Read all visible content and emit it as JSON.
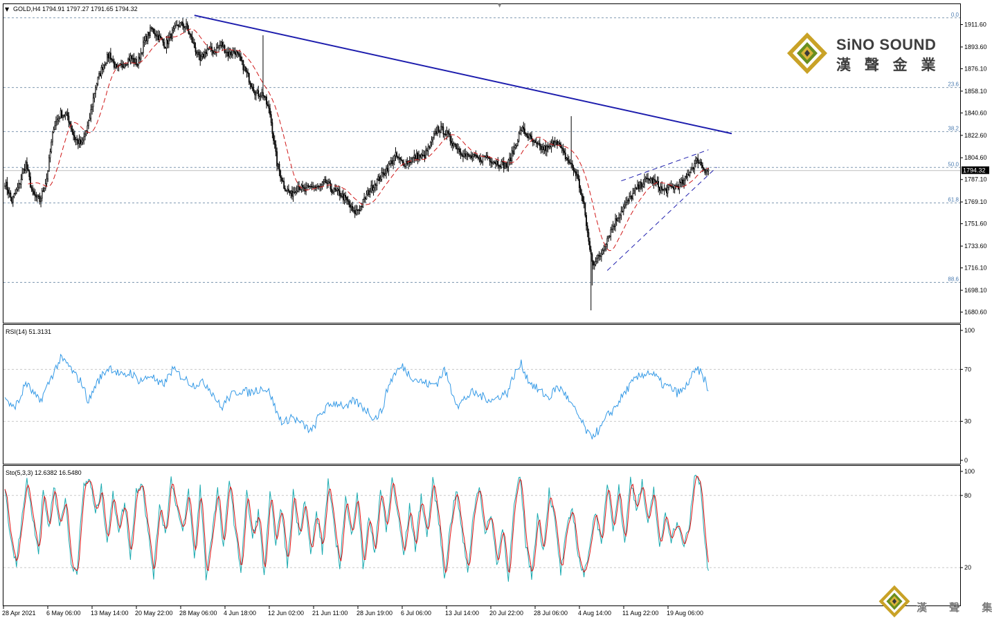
{
  "colors": {
    "background": "#ffffff",
    "candles": "#000000",
    "ma": "#d01818",
    "trendline": "#1c1cad",
    "channel": "#1c1cad",
    "fib_line": "#7e98b0",
    "fib_label": "#4a7bb0",
    "grid_dash": "#c8c8c8",
    "rsi_line": "#3399e6",
    "sto_main": "#1aaab0",
    "sto_signal": "#e01010",
    "current_price_bg": "#000000",
    "current_price_fg": "#ffffff",
    "logo_gold": "#c9a227",
    "logo_green": "#6a8f1e",
    "logo_text": "#3e3e3e"
  },
  "brand": {
    "name": "SiNO SOUND",
    "name_cn": "漢 聲 金 業",
    "watermark_cn": "漢 聲 集 團"
  },
  "chart_data": [
    {
      "type": "candlestick",
      "title": "GOLD,H4  1794.91 1797.27 1791.65 1794.32",
      "ylim": [
        1672,
        1928
      ],
      "y_ticks": [
        "1911.60",
        "1893.60",
        "1876.10",
        "1858.10",
        "1840.60",
        "1822.60",
        "1804.60",
        "1787.10",
        "1769.10",
        "1751.60",
        "1733.60",
        "1716.10",
        "1698.10",
        "1680.60"
      ],
      "current_price": "1794.32",
      "x_labels": [
        "28 Apr 2021",
        "6 May 06:00",
        "13 May 14:00",
        "20 May 22:00",
        "28 May 06:00",
        "4 Jun 18:00",
        "12 Jun 02:00",
        "21 Jun 11:00",
        "28 Jun 19:00",
        "6 Jul 06:00",
        "13 Jul 14:00",
        "20 Jul 22:00",
        "28 Jul 06:00",
        "4 Aug 14:00",
        "11 Aug 22:00",
        "19 Aug 06:00"
      ],
      "fib_levels": [
        {
          "label": "0.0",
          "price": 1917.0
        },
        {
          "label": "23.6",
          "price": 1861.0
        },
        {
          "label": "38.2",
          "price": 1825.6
        },
        {
          "label": "50.0",
          "price": 1796.8
        },
        {
          "label": "61.8",
          "price": 1768.3
        },
        {
          "label": "88.6",
          "price": 1704.5
        }
      ],
      "close_anchors": [
        [
          0,
          1785
        ],
        [
          6,
          1770
        ],
        [
          12,
          1782
        ],
        [
          18,
          1800
        ],
        [
          24,
          1775
        ],
        [
          30,
          1770
        ],
        [
          36,
          1788
        ],
        [
          42,
          1830
        ],
        [
          48,
          1840
        ],
        [
          54,
          1838
        ],
        [
          60,
          1820
        ],
        [
          66,
          1815
        ],
        [
          72,
          1832
        ],
        [
          78,
          1862
        ],
        [
          84,
          1878
        ],
        [
          90,
          1888
        ],
        [
          96,
          1875
        ],
        [
          102,
          1880
        ],
        [
          108,
          1885
        ],
        [
          114,
          1880
        ],
        [
          120,
          1898
        ],
        [
          126,
          1908
        ],
        [
          132,
          1902
        ],
        [
          138,
          1895
        ],
        [
          144,
          1905
        ],
        [
          150,
          1912
        ],
        [
          156,
          1910
        ],
        [
          162,
          1896
        ],
        [
          168,
          1882
        ],
        [
          174,
          1892
        ],
        [
          180,
          1890
        ],
        [
          186,
          1896
        ],
        [
          192,
          1888
        ],
        [
          198,
          1890
        ],
        [
          204,
          1880
        ],
        [
          210,
          1868
        ],
        [
          216,
          1856
        ],
        [
          222,
          1856
        ],
        [
          228,
          1840
        ],
        [
          234,
          1800
        ],
        [
          240,
          1782
        ],
        [
          246,
          1775
        ],
        [
          252,
          1782
        ],
        [
          258,
          1778
        ],
        [
          264,
          1782
        ],
        [
          270,
          1780
        ],
        [
          276,
          1785
        ],
        [
          282,
          1778
        ],
        [
          288,
          1776
        ],
        [
          294,
          1770
        ],
        [
          300,
          1760
        ],
        [
          306,
          1765
        ],
        [
          312,
          1776
        ],
        [
          318,
          1784
        ],
        [
          324,
          1790
        ],
        [
          330,
          1798
        ],
        [
          336,
          1806
        ],
        [
          342,
          1800
        ],
        [
          348,
          1802
        ],
        [
          354,
          1806
        ],
        [
          360,
          1805
        ],
        [
          366,
          1815
        ],
        [
          372,
          1828
        ],
        [
          378,
          1826
        ],
        [
          384,
          1818
        ],
        [
          390,
          1812
        ],
        [
          396,
          1806
        ],
        [
          402,
          1805
        ],
        [
          408,
          1803
        ],
        [
          414,
          1806
        ],
        [
          420,
          1802
        ],
        [
          426,
          1800
        ],
        [
          432,
          1798
        ],
        [
          438,
          1812
        ],
        [
          444,
          1828
        ],
        [
          450,
          1822
        ],
        [
          456,
          1815
        ],
        [
          462,
          1812
        ],
        [
          468,
          1812
        ],
        [
          474,
          1820
        ],
        [
          480,
          1808
        ],
        [
          486,
          1800
        ],
        [
          492,
          1790
        ],
        [
          498,
          1765
        ],
        [
          503,
          1730
        ],
        [
          506,
          1720
        ],
        [
          512,
          1726
        ],
        [
          518,
          1740
        ],
        [
          524,
          1752
        ],
        [
          530,
          1762
        ],
        [
          536,
          1770
        ],
        [
          542,
          1778
        ],
        [
          548,
          1784
        ],
        [
          554,
          1788
        ],
        [
          560,
          1784
        ],
        [
          566,
          1778
        ],
        [
          572,
          1780
        ],
        [
          578,
          1782
        ],
        [
          584,
          1785
        ],
        [
          590,
          1796
        ],
        [
          596,
          1803
        ],
        [
          602,
          1795
        ],
        [
          605,
          1794.32
        ]
      ],
      "special_lows": [
        [
          504,
          1682
        ],
        [
          505,
          1702
        ]
      ],
      "special_highs": [
        [
          487,
          1838
        ],
        [
          222,
          1903
        ]
      ],
      "ma_period": 20,
      "trendline": [
        [
          163,
          1919
        ],
        [
          625,
          1824
        ]
      ],
      "channel": [
        [
          [
            518,
            1714
          ],
          [
            612,
            1797
          ]
        ],
        [
          [
            530,
            1786
          ],
          [
            605,
            1811
          ]
        ]
      ]
    },
    {
      "type": "line",
      "title": "RSI(14) 51.3131",
      "ylim": [
        0,
        100
      ],
      "y_ticks": [
        "100",
        "70",
        "30",
        "0"
      ],
      "levels": [
        70,
        30
      ],
      "anchors": [
        [
          0,
          50
        ],
        [
          6,
          40
        ],
        [
          12,
          45
        ],
        [
          18,
          60
        ],
        [
          24,
          52
        ],
        [
          30,
          45
        ],
        [
          36,
          56
        ],
        [
          42,
          68
        ],
        [
          48,
          78
        ],
        [
          54,
          74
        ],
        [
          60,
          66
        ],
        [
          66,
          60
        ],
        [
          72,
          45
        ],
        [
          78,
          58
        ],
        [
          84,
          66
        ],
        [
          90,
          72
        ],
        [
          96,
          68
        ],
        [
          102,
          64
        ],
        [
          108,
          68
        ],
        [
          114,
          62
        ],
        [
          120,
          62
        ],
        [
          126,
          66
        ],
        [
          132,
          58
        ],
        [
          138,
          60
        ],
        [
          144,
          70
        ],
        [
          150,
          66
        ],
        [
          156,
          62
        ],
        [
          162,
          58
        ],
        [
          168,
          60
        ],
        [
          174,
          58
        ],
        [
          180,
          50
        ],
        [
          186,
          40
        ],
        [
          192,
          48
        ],
        [
          198,
          52
        ],
        [
          204,
          54
        ],
        [
          210,
          52
        ],
        [
          216,
          54
        ],
        [
          222,
          56
        ],
        [
          228,
          52
        ],
        [
          234,
          36
        ],
        [
          240,
          28
        ],
        [
          246,
          34
        ],
        [
          252,
          30
        ],
        [
          258,
          26
        ],
        [
          264,
          22
        ],
        [
          270,
          34
        ],
        [
          276,
          40
        ],
        [
          282,
          44
        ],
        [
          288,
          44
        ],
        [
          294,
          40
        ],
        [
          300,
          46
        ],
        [
          306,
          42
        ],
        [
          312,
          38
        ],
        [
          318,
          32
        ],
        [
          324,
          38
        ],
        [
          330,
          58
        ],
        [
          336,
          68
        ],
        [
          342,
          72
        ],
        [
          348,
          66
        ],
        [
          354,
          62
        ],
        [
          360,
          60
        ],
        [
          366,
          58
        ],
        [
          372,
          60
        ],
        [
          378,
          70
        ],
        [
          384,
          54
        ],
        [
          390,
          42
        ],
        [
          396,
          48
        ],
        [
          402,
          52
        ],
        [
          408,
          50
        ],
        [
          414,
          48
        ],
        [
          420,
          46
        ],
        [
          426,
          50
        ],
        [
          432,
          52
        ],
        [
          438,
          66
        ],
        [
          444,
          74
        ],
        [
          450,
          62
        ],
        [
          456,
          56
        ],
        [
          462,
          52
        ],
        [
          468,
          48
        ],
        [
          474,
          56
        ],
        [
          480,
          54
        ],
        [
          486,
          44
        ],
        [
          492,
          36
        ],
        [
          498,
          26
        ],
        [
          503,
          18
        ],
        [
          506,
          20
        ],
        [
          512,
          24
        ],
        [
          518,
          34
        ],
        [
          524,
          40
        ],
        [
          530,
          48
        ],
        [
          536,
          56
        ],
        [
          542,
          62
        ],
        [
          548,
          66
        ],
        [
          554,
          68
        ],
        [
          560,
          64
        ],
        [
          566,
          58
        ],
        [
          572,
          56
        ],
        [
          578,
          52
        ],
        [
          584,
          54
        ],
        [
          590,
          64
        ],
        [
          596,
          70
        ],
        [
          602,
          62
        ],
        [
          605,
          51.3
        ]
      ]
    },
    {
      "type": "line",
      "title": "Sto(5,3,3) 12.6382 16.5480",
      "ylim": [
        0,
        100
      ],
      "y_ticks": [
        "100",
        "80",
        "20"
      ],
      "levels": [
        80,
        20
      ],
      "anchors": [
        [
          0,
          88
        ],
        [
          5,
          42
        ],
        [
          10,
          22
        ],
        [
          14,
          58
        ],
        [
          19,
          92
        ],
        [
          24,
          62
        ],
        [
          29,
          34
        ],
        [
          33,
          84
        ],
        [
          38,
          52
        ],
        [
          42,
          90
        ],
        [
          47,
          54
        ],
        [
          52,
          78
        ],
        [
          57,
          22
        ],
        [
          62,
          18
        ],
        [
          68,
          88
        ],
        [
          73,
          94
        ],
        [
          78,
          64
        ],
        [
          83,
          86
        ],
        [
          88,
          42
        ],
        [
          93,
          80
        ],
        [
          98,
          52
        ],
        [
          103,
          74
        ],
        [
          108,
          30
        ],
        [
          113,
          84
        ],
        [
          118,
          92
        ],
        [
          123,
          50
        ],
        [
          128,
          14
        ],
        [
          133,
          74
        ],
        [
          138,
          48
        ],
        [
          143,
          94
        ],
        [
          148,
          70
        ],
        [
          153,
          48
        ],
        [
          158,
          84
        ],
        [
          163,
          26
        ],
        [
          168,
          88
        ],
        [
          173,
          12
        ],
        [
          178,
          48
        ],
        [
          183,
          84
        ],
        [
          188,
          34
        ],
        [
          193,
          96
        ],
        [
          198,
          50
        ],
        [
          203,
          18
        ],
        [
          208,
          82
        ],
        [
          213,
          44
        ],
        [
          218,
          66
        ],
        [
          223,
          14
        ],
        [
          228,
          80
        ],
        [
          233,
          42
        ],
        [
          238,
          70
        ],
        [
          243,
          20
        ],
        [
          248,
          84
        ],
        [
          253,
          46
        ],
        [
          258,
          78
        ],
        [
          263,
          30
        ],
        [
          268,
          66
        ],
        [
          273,
          34
        ],
        [
          278,
          92
        ],
        [
          283,
          54
        ],
        [
          288,
          22
        ],
        [
          293,
          78
        ],
        [
          298,
          46
        ],
        [
          303,
          84
        ],
        [
          308,
          20
        ],
        [
          313,
          62
        ],
        [
          318,
          32
        ],
        [
          323,
          86
        ],
        [
          328,
          50
        ],
        [
          333,
          94
        ],
        [
          338,
          64
        ],
        [
          343,
          30
        ],
        [
          348,
          70
        ],
        [
          353,
          36
        ],
        [
          358,
          80
        ],
        [
          363,
          46
        ],
        [
          368,
          92
        ],
        [
          373,
          60
        ],
        [
          378,
          12
        ],
        [
          383,
          54
        ],
        [
          388,
          86
        ],
        [
          393,
          50
        ],
        [
          398,
          16
        ],
        [
          403,
          66
        ],
        [
          408,
          90
        ],
        [
          413,
          46
        ],
        [
          418,
          66
        ],
        [
          423,
          22
        ],
        [
          428,
          54
        ],
        [
          433,
          12
        ],
        [
          438,
          72
        ],
        [
          443,
          96
        ],
        [
          448,
          40
        ],
        [
          453,
          12
        ],
        [
          458,
          64
        ],
        [
          463,
          34
        ],
        [
          468,
          84
        ],
        [
          473,
          58
        ],
        [
          478,
          16
        ],
        [
          483,
          50
        ],
        [
          488,
          70
        ],
        [
          493,
          30
        ],
        [
          498,
          12
        ],
        [
          503,
          40
        ],
        [
          508,
          68
        ],
        [
          513,
          36
        ],
        [
          518,
          92
        ],
        [
          523,
          54
        ],
        [
          528,
          86
        ],
        [
          533,
          40
        ],
        [
          538,
          94
        ],
        [
          543,
          70
        ],
        [
          548,
          90
        ],
        [
          553,
          54
        ],
        [
          558,
          86
        ],
        [
          563,
          34
        ],
        [
          568,
          66
        ],
        [
          573,
          44
        ],
        [
          578,
          58
        ],
        [
          583,
          38
        ],
        [
          588,
          50
        ],
        [
          593,
          96
        ],
        [
          598,
          92
        ],
        [
          602,
          40
        ],
        [
          605,
          14
        ]
      ],
      "signal_lag": 2
    }
  ]
}
